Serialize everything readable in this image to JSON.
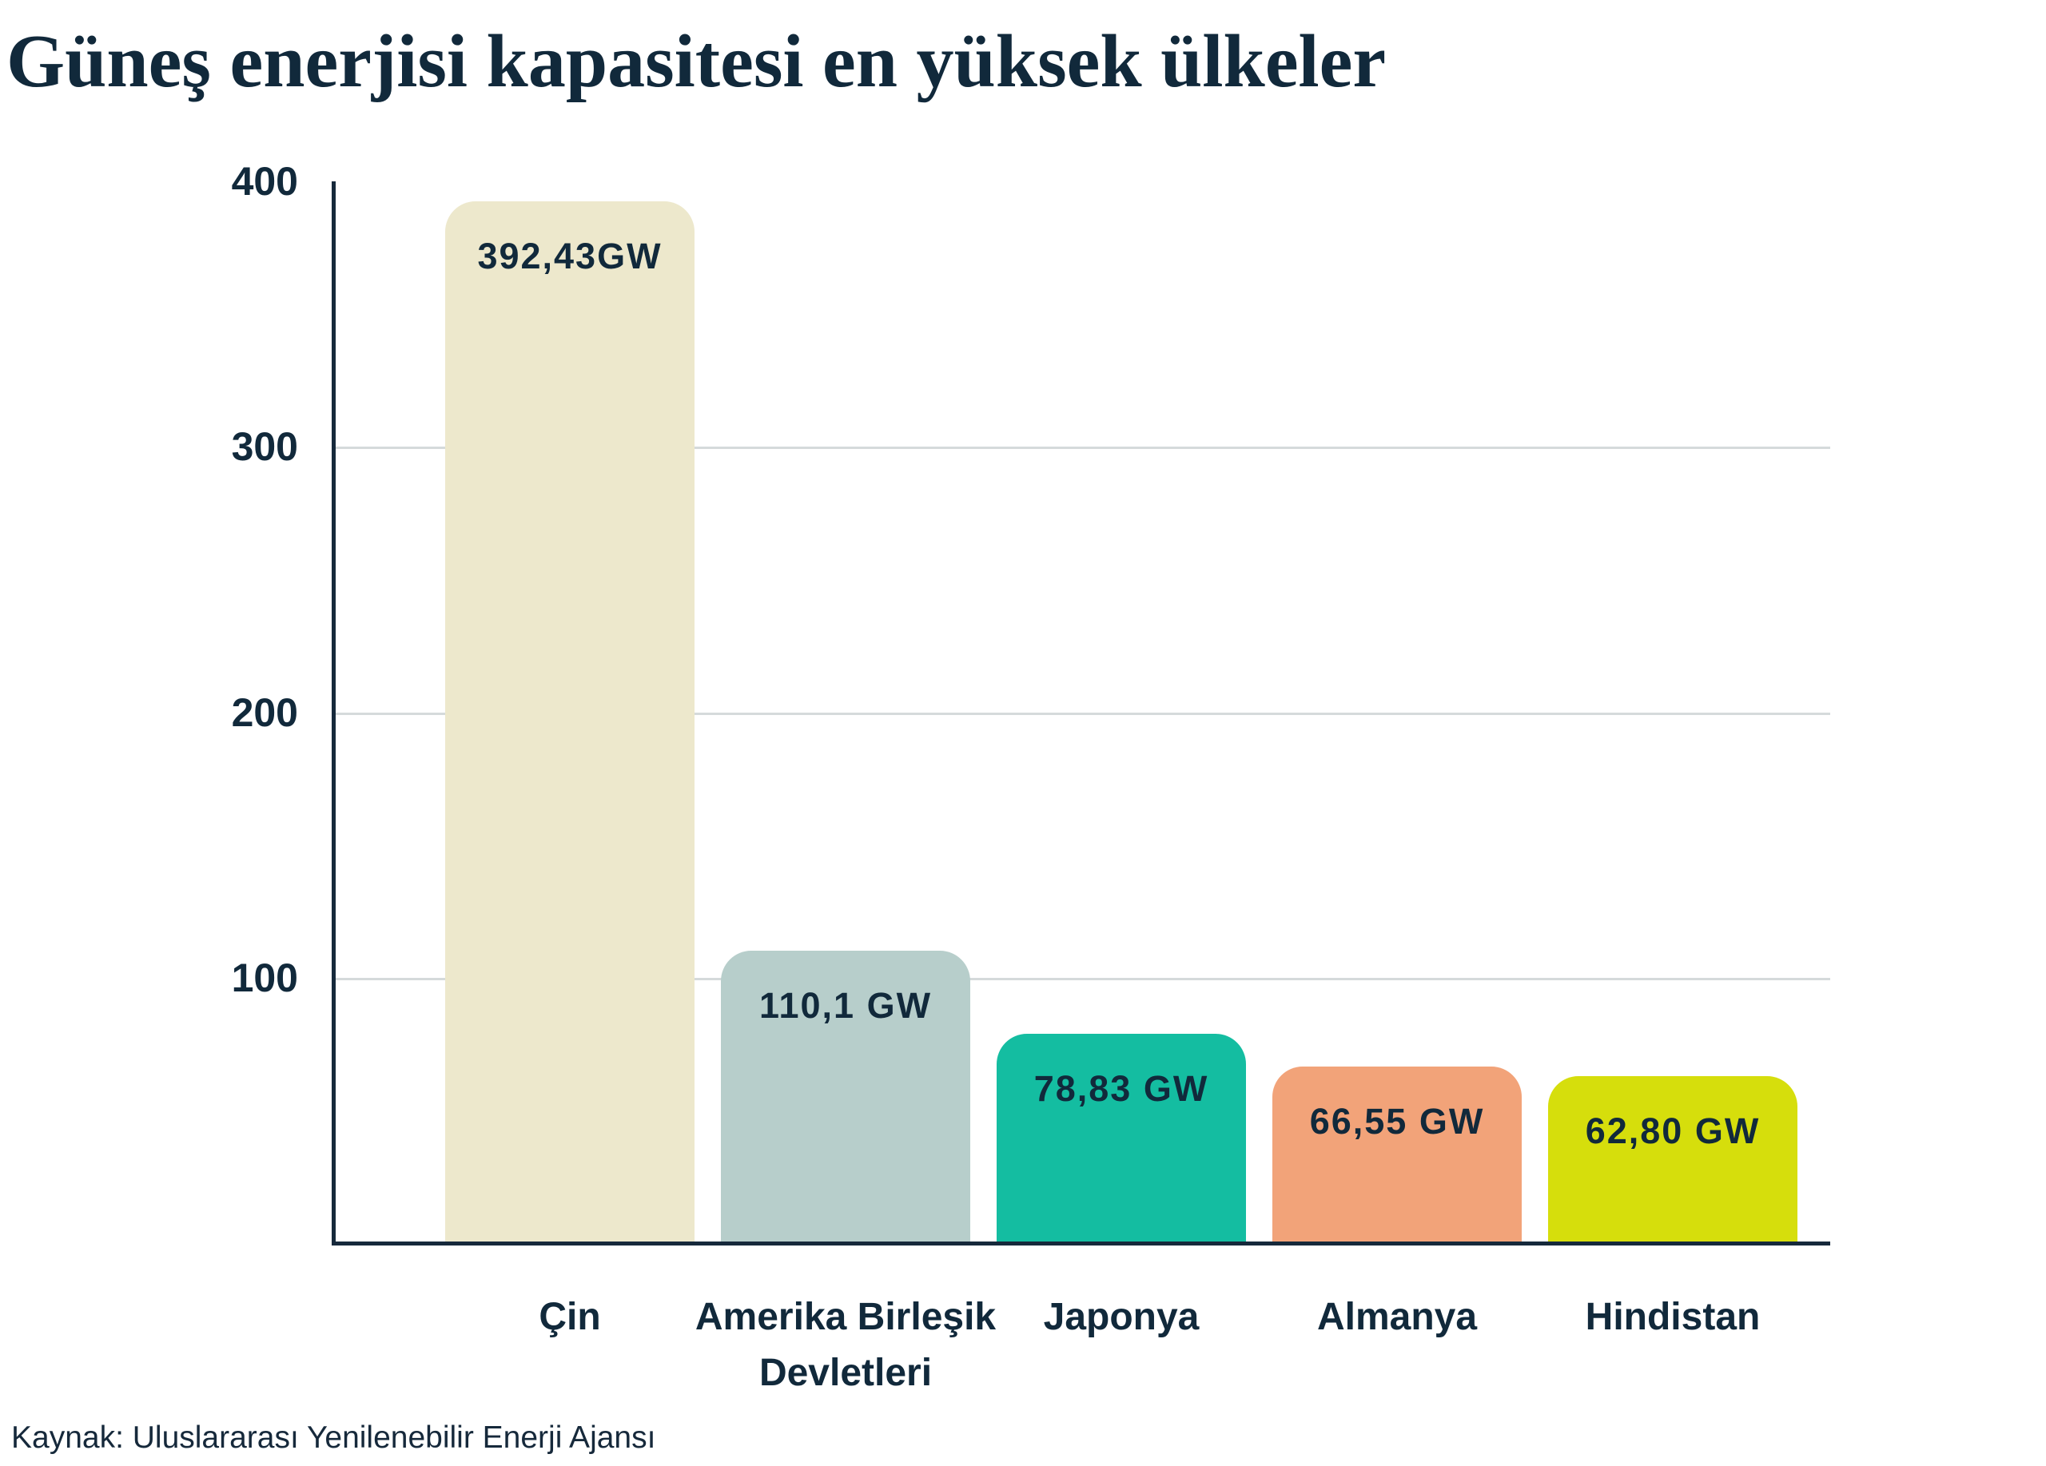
{
  "title": "Güneş enerjisi kapasitesi en yüksek ülkeler",
  "source": "Kaynak: Uluslararası Yenilenebilir Enerji Ajansı",
  "chart_data": {
    "type": "bar",
    "title": "Güneş enerjisi kapasitesi en yüksek ülkeler",
    "unit": "GW",
    "categories": [
      "Çin",
      "Amerika Birleşik Devletleri",
      "Japonya",
      "Almanya",
      "Hindistan"
    ],
    "values": [
      392.43,
      110.1,
      78.83,
      66.55,
      62.8
    ],
    "value_labels": [
      "392,43GW",
      "110,1 GW",
      "78,83 GW",
      "66,55 GW",
      "62,80 GW"
    ],
    "bar_colors": [
      "#EDE8CC",
      "#B7CECB",
      "#14BDA1",
      "#F2A379",
      "#D6DE0C"
    ],
    "xlabel": "",
    "ylabel": "",
    "ylim": [
      0,
      400
    ],
    "yticks": [
      400,
      300,
      200,
      100
    ],
    "gridlines": [
      300,
      200,
      100
    ],
    "grid": true,
    "legend": false,
    "axis_color": "#16293B",
    "grid_color": "#D5DADB",
    "text_color": "#11293B",
    "source": "Kaynak: Uluslararası Yenilenebilir Enerji Ajansı"
  }
}
